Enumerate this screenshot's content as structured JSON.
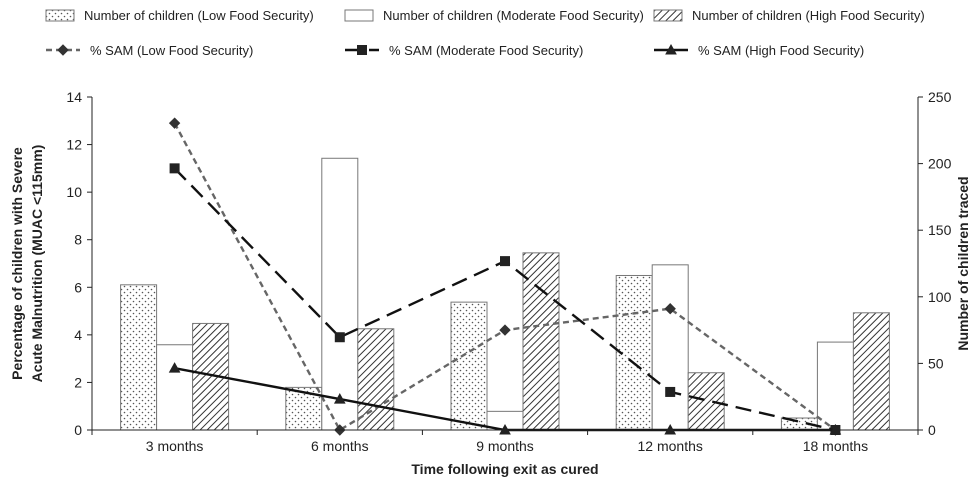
{
  "chart_data": {
    "type": "bar",
    "categories": [
      "3 months",
      "6 months",
      "9 months",
      "12 months",
      "18 months"
    ],
    "xlabel": "Time following exit as cured",
    "ylabel_left": [
      "Percentage of children with Severe",
      "Acute Malnutrition (MUAC <115mm)"
    ],
    "ylabel_right": "Number of children traced",
    "ylim_left": [
      0,
      14
    ],
    "yticks_left": [
      "0",
      "2",
      "4",
      "6",
      "8",
      "10",
      "12",
      "14"
    ],
    "ylim_right": [
      0,
      250
    ],
    "yticks_right": [
      "0",
      "50",
      "100",
      "150",
      "200",
      "250"
    ],
    "bar_series": [
      {
        "name": "Number of children (Low Food Security)",
        "pattern": "dots",
        "values": [
          109,
          32,
          96,
          116,
          9
        ]
      },
      {
        "name": "Number of children (Moderate Food Security)",
        "pattern": "plain",
        "values": [
          64,
          204,
          14,
          124,
          66
        ]
      },
      {
        "name": "Number of children (High Food Security)",
        "pattern": "hatch",
        "values": [
          80,
          76,
          133,
          43,
          88
        ]
      }
    ],
    "line_series": [
      {
        "name": "% SAM (Low Food Security)",
        "marker": "diamond",
        "dash": "short",
        "color": "#666666",
        "values": [
          12.9,
          0,
          4.2,
          5.1,
          0
        ]
      },
      {
        "name": "% SAM (Moderate Food Security)",
        "marker": "square",
        "dash": "long",
        "color": "#111111",
        "values": [
          11,
          3.9,
          7.1,
          1.6,
          0
        ]
      },
      {
        "name": "% SAM (High Food Security)",
        "marker": "triangle",
        "dash": "solid",
        "color": "#111111",
        "values": [
          2.6,
          1.3,
          0,
          0,
          0
        ]
      }
    ],
    "grid": false,
    "legend_position": "top"
  }
}
